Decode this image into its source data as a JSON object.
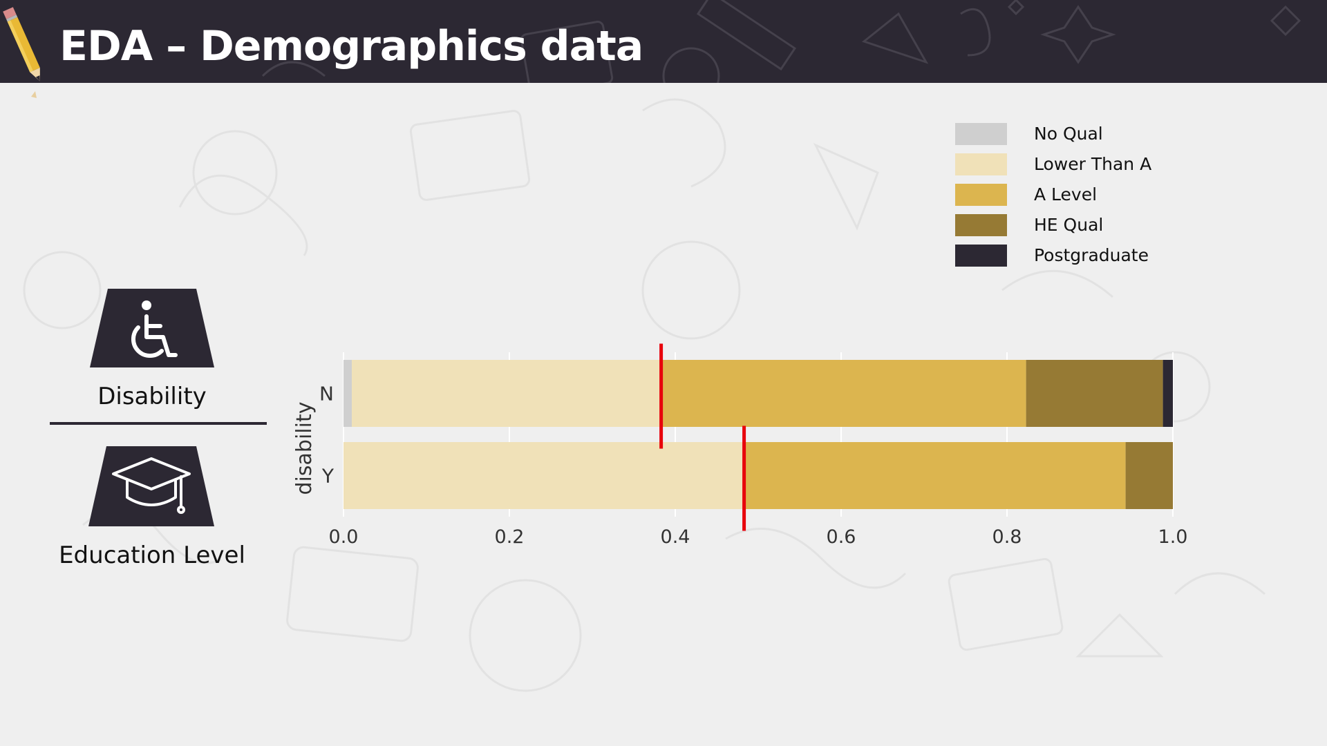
{
  "header": {
    "title": "EDA – Demographics data"
  },
  "sidebar": {
    "items": [
      {
        "label": "Disability",
        "icon": "wheelchair-icon"
      },
      {
        "label": "Education Level",
        "icon": "graduation-cap-icon"
      }
    ]
  },
  "colors": {
    "header_bg": "#2c2833",
    "page_bg": "#efefef",
    "marker": "#e8000b"
  },
  "chart_data": {
    "type": "bar",
    "orientation": "horizontal",
    "stacked": true,
    "ylabel": "disability",
    "xlabel": "",
    "categories": [
      "N",
      "Y"
    ],
    "xlim": [
      0,
      1.0
    ],
    "xticks": [
      "0.0",
      "0.2",
      "0.4",
      "0.6",
      "0.8",
      "1.0"
    ],
    "grid": true,
    "legend_position": "top-right",
    "series": [
      {
        "name": "No Qual",
        "color": "#cfcfcf",
        "values": [
          0.01,
          0.0
        ]
      },
      {
        "name": "Lower Than A",
        "color": "#f0e1b8",
        "values": [
          0.373,
          0.485
        ]
      },
      {
        "name": "A Level",
        "color": "#dcb54f",
        "values": [
          0.44,
          0.458
        ]
      },
      {
        "name": "HE Qual",
        "color": "#967a34",
        "values": [
          0.165,
          0.057
        ]
      },
      {
        "name": "Postgraduate",
        "color": "#2c2833",
        "values": [
          0.012,
          0.0
        ]
      }
    ],
    "markers": [
      {
        "category": "N",
        "x": 0.383
      },
      {
        "category": "Y",
        "x": 0.483
      }
    ]
  }
}
